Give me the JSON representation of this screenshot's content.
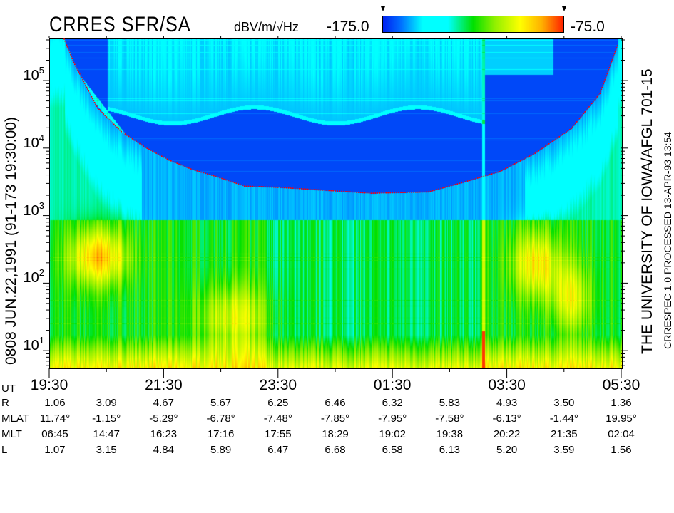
{
  "header": {
    "title": "CRRES SFR/SA",
    "units": "dBV/m/√Hz",
    "colorbar_min_label": "-175.0",
    "colorbar_max_label": "-75.0"
  },
  "left_label": "0808   JUN.22,1991   (91-173 19:30:00)",
  "right_label_1": "THE UNIVERSITY OF IOWA/AFGL 701-15",
  "right_label_2": "CRRESPEC 1.0   PROCESSED 13-APR-93   13:54",
  "chart_data": {
    "type": "heatmap",
    "title": "CRRES SFR/SA",
    "colorbar": {
      "label": "dBV/m/√Hz",
      "min": -175.0,
      "max": -75.0,
      "colors": [
        "#0020f0",
        "#00ffff",
        "#00e000",
        "#ffff00",
        "#ff2000"
      ]
    },
    "y_axis": {
      "scale": "log",
      "range": [
        5.6,
        420000
      ],
      "ticks": [
        {
          "base": "10",
          "exp": "1"
        },
        {
          "base": "10",
          "exp": "2"
        },
        {
          "base": "10",
          "exp": "3"
        },
        {
          "base": "10",
          "exp": "4"
        },
        {
          "base": "10",
          "exp": "5"
        }
      ]
    },
    "x_axis": {
      "start": "19:30",
      "end": "05:30",
      "tick_labels": [
        "19:30",
        "21:30",
        "23:30",
        "01:30",
        "03:30",
        "05:30"
      ]
    },
    "overlay_curve": {
      "color": "#ff0000",
      "points": [
        [
          "19:45",
          420000
        ],
        [
          "19:55",
          190000
        ],
        [
          "20:20",
          40000
        ],
        [
          "20:45",
          18000
        ],
        [
          "21:10",
          10500
        ],
        [
          "21:35",
          6800
        ],
        [
          "22:00",
          4900
        ],
        [
          "22:24",
          3900
        ],
        [
          "22:54",
          2800
        ],
        [
          "23:27",
          2700
        ],
        [
          "00:05",
          2500
        ],
        [
          "01:07",
          2200
        ],
        [
          "02:07",
          2300
        ],
        [
          "02:44",
          3200
        ],
        [
          "03:22",
          4600
        ],
        [
          "03:59",
          8600
        ],
        [
          "04:37",
          20000
        ],
        [
          "05:07",
          66000
        ],
        [
          "05:26",
          360000
        ]
      ]
    }
  },
  "ephemeris": {
    "rows": [
      {
        "label": "UT",
        "values": [
          "19:30",
          "",
          "21:30",
          "",
          "23:30",
          "",
          "01:30",
          "",
          "03:30",
          "",
          "05:30"
        ]
      },
      {
        "label": "R",
        "values": [
          "1.06",
          "3.09",
          "4.67",
          "5.67",
          "6.25",
          "6.46",
          "6.32",
          "5.83",
          "4.93",
          "3.50",
          "1.36"
        ]
      },
      {
        "label": "MLAT",
        "values": [
          "11.74°",
          "-1.15°",
          "-5.29°",
          "-6.78°",
          "-7.48°",
          "-7.85°",
          "-7.95°",
          "-7.58°",
          "-6.13°",
          "-1.44°",
          "19.95°"
        ]
      },
      {
        "label": "MLT",
        "values": [
          "06:45",
          "14:47",
          "16:23",
          "17:16",
          "17:55",
          "18:29",
          "19:02",
          "19:38",
          "20:22",
          "21:35",
          "02:04"
        ]
      },
      {
        "label": "L",
        "values": [
          "1.07",
          "3.15",
          "4.84",
          "5.89",
          "6.47",
          "6.68",
          "6.58",
          "6.13",
          "5.20",
          "3.59",
          "1.56"
        ]
      }
    ]
  }
}
